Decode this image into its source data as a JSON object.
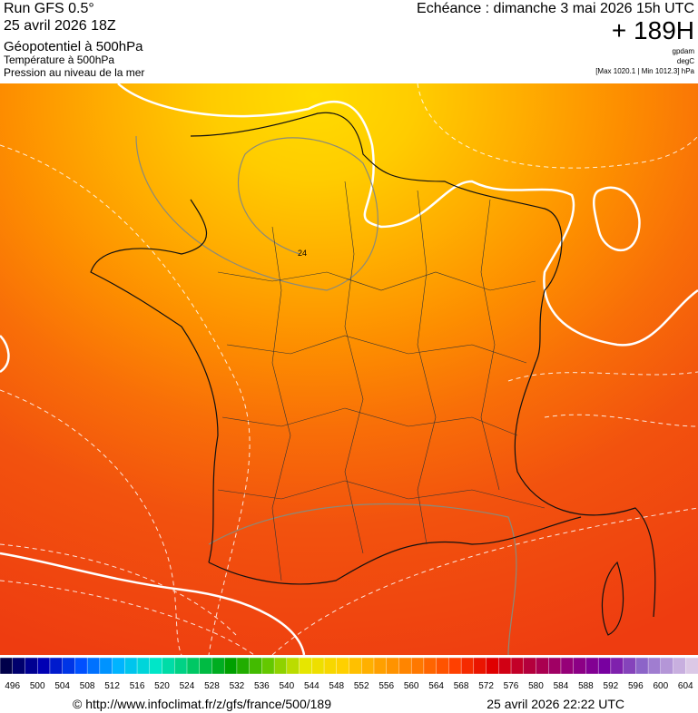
{
  "header": {
    "run": "Run GFS 0.5°",
    "date": "25 avril 2026 18Z",
    "fields": [
      "Géopotentiel à 500hPa",
      "Température à 500hPa",
      "Pression au niveau de la mer"
    ],
    "echeance": "Echéance : dimanche 3 mai 2026 15h UTC",
    "lead": "+ 189H",
    "units": [
      "gpdam",
      "degC"
    ],
    "range": "[Max 1020.1 | Min 1012.3] hPa"
  },
  "map": {
    "contour_labels": [
      "24"
    ]
  },
  "legend": {
    "labels": [
      496,
      500,
      504,
      508,
      512,
      516,
      520,
      524,
      528,
      532,
      536,
      540,
      544,
      548,
      552,
      556,
      560,
      564,
      568,
      572,
      576,
      580,
      584,
      588,
      592,
      596,
      600,
      604
    ]
  },
  "footer": {
    "url": "© http://www.infoclimat.fr/z/gfs/france/500/189",
    "timestamp": "25 avril 2026 22:22 UTC"
  }
}
